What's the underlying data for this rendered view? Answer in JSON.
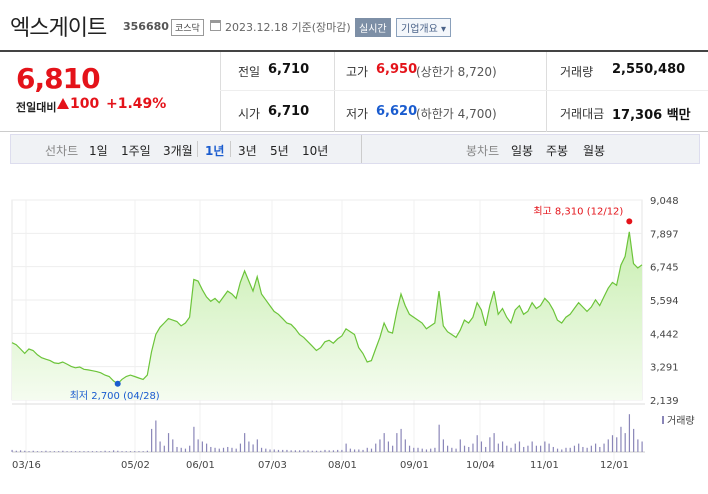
{
  "header": {
    "name": "엑스게이트",
    "code": "356680",
    "market": "코스닥",
    "date": "2023.12.18 기준(장마감)",
    "realtime": "실시간",
    "overview": "기업개요 ▾"
  },
  "price": {
    "current": "6,810",
    "change_label": "전일대비",
    "change": "100",
    "change_pct": "+1.49%",
    "prev_close_label": "전일",
    "prev_close": "6,710",
    "open_label": "시가",
    "open": "6,710",
    "high_label": "고가",
    "high": "6,950",
    "upper_limit": "(상한가 8,720)",
    "low_label": "저가",
    "low": "6,620",
    "lower_limit": "(하한가 4,700)",
    "volume_label": "거래량",
    "volume": "2,550,480",
    "amount_label": "거래대금",
    "amount": "17,306 백만"
  },
  "periods": {
    "line_label": "선차트",
    "line_items": [
      "1일",
      "1주일",
      "3개월",
      "1년",
      "3년",
      "5년",
      "10년"
    ],
    "active": "1년",
    "candle_label": "봉차트",
    "candle_items": [
      "일봉",
      "주봉",
      "월봉"
    ]
  },
  "chart_data": {
    "type": "area",
    "y_ticks": [
      "9,048",
      "7,897",
      "6,745",
      "5,594",
      "4,442",
      "3,291",
      "2,139"
    ],
    "ylim": [
      2139,
      9048
    ],
    "x_ticks": [
      "03/16",
      "05/02",
      "06/01",
      "07/03",
      "08/01",
      "09/01",
      "10/04",
      "11/01",
      "12/01"
    ],
    "high_annotation": "최고 8,310 (12/12)",
    "low_annotation": "최저 2,700 (04/28)",
    "volume_legend": "거래량",
    "colors": {
      "line": "#6cc43a",
      "fill_top": "#c8eeb0",
      "fill_bottom": "#f3fbee",
      "high": "#e4131a",
      "low": "#1a5ccf",
      "volume": "#8a86b8"
    },
    "series": [
      {
        "values": [
          4120,
          4050,
          3900,
          3750,
          3900,
          3850,
          3700,
          3600,
          3550,
          3500,
          3420,
          3400,
          3450,
          3380,
          3300,
          3250,
          3280,
          3200,
          3180,
          3150,
          3120,
          3080,
          3000,
          2950,
          2800,
          2700,
          2850,
          2950,
          3000,
          2950,
          2900,
          2850,
          3000,
          3800,
          4400,
          4650,
          4800,
          4950,
          4900,
          4850,
          4700,
          4800,
          5000,
          6300,
          6250,
          5950,
          5700,
          5550,
          5650,
          5500,
          5700,
          5900,
          5800,
          5650,
          6200,
          6600,
          6250,
          5900,
          6400,
          5800,
          5600,
          5400,
          5200,
          5100,
          4950,
          4800,
          4750,
          4600,
          4400,
          4300,
          4150,
          4000,
          3850,
          3950,
          4150,
          4200,
          4100,
          4250,
          4350,
          4600,
          4500,
          4400,
          3950,
          3750,
          3450,
          3500,
          3900,
          4300,
          4800,
          4500,
          4450,
          5200,
          5800,
          5400,
          5100,
          5000,
          4900,
          4800,
          4600,
          4700,
          4800,
          5900,
          4700,
          4500,
          4400,
          4300,
          4550,
          4900,
          4800,
          5000,
          5500,
          5250,
          4700,
          5400,
          5900,
          5100,
          5300,
          5000,
          4800,
          5250,
          5400,
          5100,
          5200,
          5500,
          5300,
          5400,
          5650,
          5500,
          5250,
          4900,
          4800,
          5000,
          5100,
          5300,
          5500,
          5350,
          5200,
          5350,
          5600,
          5400,
          5700,
          6000,
          6200,
          6100,
          6800,
          7100,
          7950,
          6850,
          6700,
          6810
        ]
      }
    ],
    "volume": [
      0.05,
      0.03,
      0.04,
      0.03,
      0.02,
      0.03,
      0.02,
      0.02,
      0.03,
      0.02,
      0.02,
      0.02,
      0.03,
      0.02,
      0.02,
      0.02,
      0.02,
      0.02,
      0.02,
      0.02,
      0.02,
      0.02,
      0.03,
      0.02,
      0.04,
      0.03,
      0.02,
      0.02,
      0.02,
      0.02,
      0.02,
      0.02,
      0.03,
      0.55,
      0.75,
      0.25,
      0.15,
      0.45,
      0.3,
      0.12,
      0.1,
      0.08,
      0.15,
      0.6,
      0.3,
      0.25,
      0.2,
      0.12,
      0.1,
      0.08,
      0.1,
      0.12,
      0.1,
      0.08,
      0.2,
      0.45,
      0.25,
      0.18,
      0.3,
      0.1,
      0.08,
      0.06,
      0.06,
      0.05,
      0.05,
      0.05,
      0.04,
      0.04,
      0.04,
      0.04,
      0.04,
      0.03,
      0.03,
      0.03,
      0.05,
      0.04,
      0.04,
      0.05,
      0.05,
      0.2,
      0.08,
      0.06,
      0.06,
      0.05,
      0.1,
      0.08,
      0.2,
      0.3,
      0.45,
      0.25,
      0.15,
      0.45,
      0.55,
      0.3,
      0.15,
      0.1,
      0.1,
      0.08,
      0.06,
      0.08,
      0.1,
      0.65,
      0.3,
      0.15,
      0.1,
      0.08,
      0.3,
      0.15,
      0.12,
      0.2,
      0.4,
      0.25,
      0.12,
      0.35,
      0.45,
      0.2,
      0.25,
      0.15,
      0.1,
      0.2,
      0.25,
      0.12,
      0.15,
      0.25,
      0.15,
      0.15,
      0.25,
      0.2,
      0.12,
      0.08,
      0.06,
      0.1,
      0.1,
      0.15,
      0.2,
      0.12,
      0.1,
      0.15,
      0.2,
      0.12,
      0.2,
      0.3,
      0.4,
      0.35,
      0.6,
      0.45,
      0.9,
      0.55,
      0.3,
      0.25
    ]
  }
}
